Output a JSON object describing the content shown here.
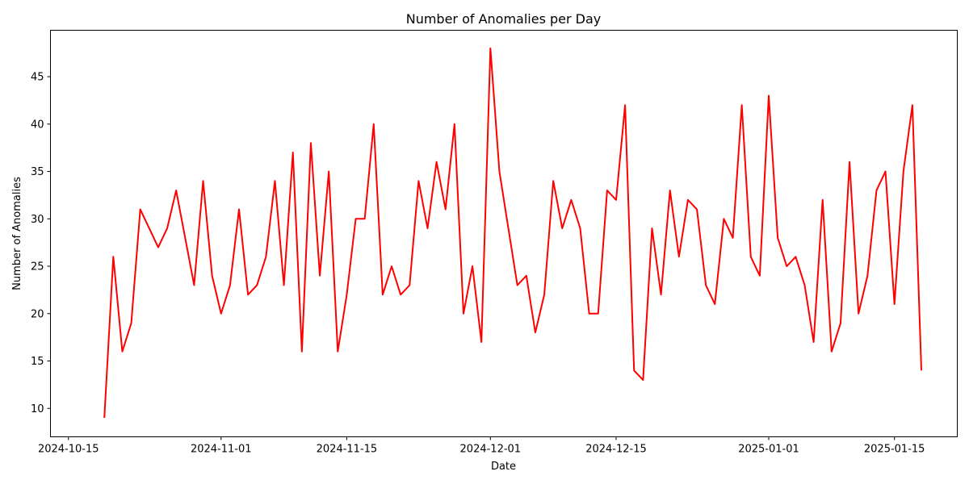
{
  "chart_data": {
    "type": "line",
    "title": "Number of Anomalies per Day",
    "xlabel": "Date",
    "ylabel": "Number of Anomalies",
    "line_color": "#ff0000",
    "grid": false,
    "legend": "none",
    "xlim": [
      "2024-10-13",
      "2025-01-22"
    ],
    "ylim": [
      7,
      49.9
    ],
    "x_ticks": [
      {
        "date": "2024-10-15",
        "label": "2024-10-15"
      },
      {
        "date": "2024-11-01",
        "label": "2024-11-01"
      },
      {
        "date": "2024-11-15",
        "label": "2024-11-15"
      },
      {
        "date": "2024-12-01",
        "label": "2024-12-01"
      },
      {
        "date": "2024-12-15",
        "label": "2024-12-15"
      },
      {
        "date": "2025-01-01",
        "label": "2025-01-01"
      },
      {
        "date": "2025-01-15",
        "label": "2025-01-15"
      }
    ],
    "y_ticks": [
      10,
      15,
      20,
      25,
      30,
      35,
      40,
      45
    ],
    "series": [
      {
        "x": [
          "2024-10-19",
          "2024-10-20",
          "2024-10-21",
          "2024-10-22",
          "2024-10-23",
          "2024-10-24",
          "2024-10-25",
          "2024-10-26",
          "2024-10-27",
          "2024-10-28",
          "2024-10-29",
          "2024-10-30",
          "2024-10-31",
          "2024-11-01",
          "2024-11-02",
          "2024-11-03",
          "2024-11-04",
          "2024-11-05",
          "2024-11-06",
          "2024-11-07",
          "2024-11-08",
          "2024-11-09",
          "2024-11-10",
          "2024-11-11",
          "2024-11-12",
          "2024-11-13",
          "2024-11-14",
          "2024-11-15",
          "2024-11-16",
          "2024-11-17",
          "2024-11-18",
          "2024-11-19",
          "2024-11-20",
          "2024-11-21",
          "2024-11-22",
          "2024-11-23",
          "2024-11-24",
          "2024-11-25",
          "2024-11-26",
          "2024-11-27",
          "2024-11-28",
          "2024-11-29",
          "2024-11-30",
          "2024-12-01",
          "2024-12-02",
          "2024-12-03",
          "2024-12-04",
          "2024-12-05",
          "2024-12-06",
          "2024-12-07",
          "2024-12-08",
          "2024-12-09",
          "2024-12-10",
          "2024-12-11",
          "2024-12-12",
          "2024-12-13",
          "2024-12-14",
          "2024-12-15",
          "2024-12-16",
          "2024-12-17",
          "2024-12-18",
          "2024-12-19",
          "2024-12-20",
          "2024-12-21",
          "2024-12-22",
          "2024-12-23",
          "2024-12-24",
          "2024-12-25",
          "2024-12-26",
          "2024-12-27",
          "2024-12-28",
          "2024-12-29",
          "2024-12-30",
          "2024-12-31",
          "2025-01-01",
          "2025-01-02",
          "2025-01-03",
          "2025-01-04",
          "2025-01-05",
          "2025-01-06",
          "2025-01-07",
          "2025-01-08",
          "2025-01-09",
          "2025-01-10",
          "2025-01-11",
          "2025-01-12",
          "2025-01-13",
          "2025-01-14",
          "2025-01-15",
          "2025-01-16",
          "2025-01-17",
          "2025-01-18"
        ],
        "values": [
          9,
          26,
          16,
          19,
          31,
          29,
          27,
          29,
          33,
          28,
          23,
          34,
          24,
          20,
          23,
          31,
          22,
          23,
          26,
          34,
          23,
          37,
          16,
          38,
          24,
          35,
          16,
          22,
          30,
          30,
          40,
          22,
          25,
          22,
          23,
          34,
          29,
          36,
          31,
          40,
          20,
          25,
          17,
          48,
          35,
          29,
          23,
          24,
          18,
          22,
          34,
          29,
          32,
          29,
          20,
          20,
          33,
          32,
          42,
          14,
          13,
          29,
          22,
          33,
          26,
          32,
          31,
          23,
          21,
          30,
          28,
          42,
          26,
          24,
          43,
          28,
          25,
          26,
          23,
          17,
          32,
          16,
          19,
          36,
          20,
          24,
          33,
          35,
          21,
          35,
          42,
          14
        ]
      }
    ]
  }
}
